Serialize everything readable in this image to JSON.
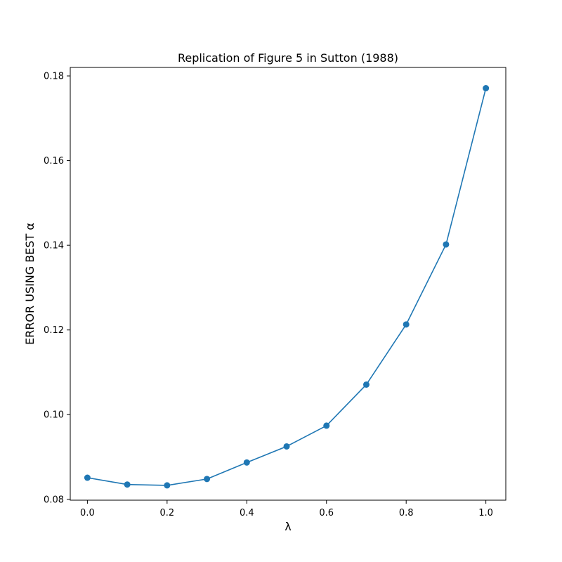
{
  "chart_data": {
    "type": "line",
    "title": "Replication of Figure 5 in Sutton (1988)",
    "xlabel": "λ",
    "ylabel": "ERROR USING BEST α",
    "x": [
      0.0,
      0.1,
      0.2,
      0.3,
      0.4,
      0.5,
      0.6,
      0.7,
      0.8,
      0.9,
      1.0
    ],
    "series": [
      {
        "values": [
          0.0851,
          0.0835,
          0.0833,
          0.0848,
          0.0887,
          0.0925,
          0.0974,
          0.1071,
          0.1213,
          0.1402,
          0.1771
        ],
        "color": "#1f77b4",
        "marker": "circle"
      }
    ],
    "xlim": [
      -0.043,
      1.05
    ],
    "ylim": [
      0.0798,
      0.182
    ],
    "x_ticks": [
      0.0,
      0.2,
      0.4,
      0.6,
      0.8,
      1.0
    ],
    "x_tick_labels": [
      "0.0",
      "0.2",
      "0.4",
      "0.6",
      "0.8",
      "1.0"
    ],
    "y_ticks": [
      0.08,
      0.1,
      0.12,
      0.14,
      0.16,
      0.18
    ],
    "y_tick_labels": [
      "0.08",
      "0.10",
      "0.12",
      "0.14",
      "0.16",
      "0.18"
    ],
    "grid": false,
    "legend": "none"
  }
}
